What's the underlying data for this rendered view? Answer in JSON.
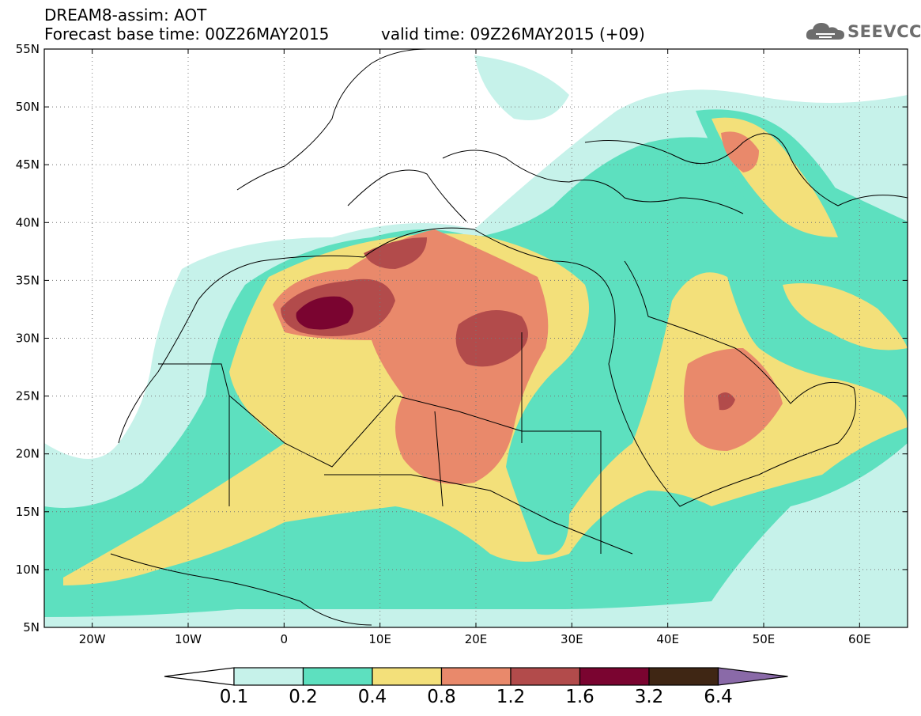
{
  "header": {
    "line1": "DREAM8-assim: AOT",
    "line2": "Forecast base time: 00Z26MAY2015",
    "line3": "valid time: 09Z26MAY2015 (+09)",
    "logo_text": "SEEVCCC",
    "logo_icon": "cloud-icon"
  },
  "map": {
    "lat_labels": [
      "55N",
      "50N",
      "45N",
      "40N",
      "35N",
      "30N",
      "25N",
      "20N",
      "15N",
      "10N",
      "5N"
    ],
    "lon_labels": [
      "20W",
      "10W",
      "0",
      "10E",
      "20E",
      "30E",
      "40E",
      "50E",
      "60E"
    ],
    "lon_range": [
      -25,
      65
    ],
    "lat_range": [
      5,
      55
    ],
    "grid": "dotted"
  },
  "colorbar": {
    "levels": [
      "0.1",
      "0.2",
      "0.4",
      "0.8",
      "1.2",
      "1.6",
      "3.2",
      "6.4"
    ],
    "colors": [
      "#c6f2ea",
      "#5de0bf",
      "#f3e07a",
      "#e9896b",
      "#b24b4b",
      "#7a0430",
      "#3f2614",
      "#8a6aa8"
    ]
  }
}
